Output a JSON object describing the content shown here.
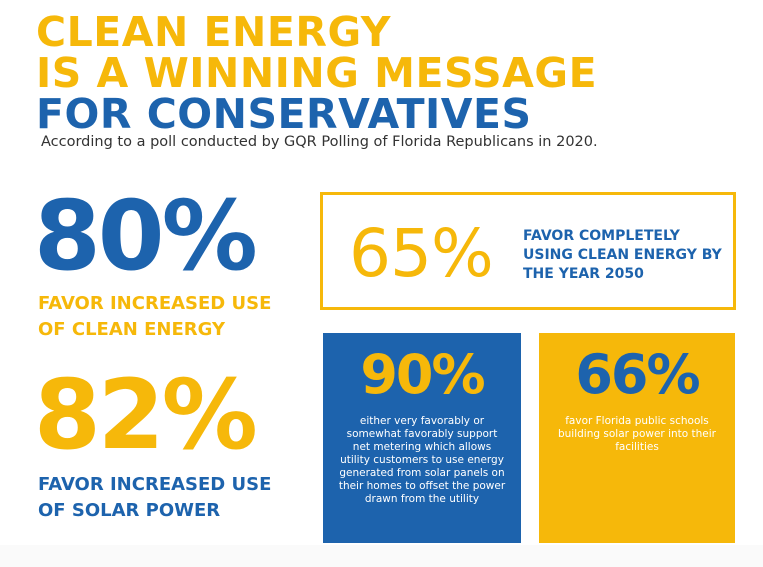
{
  "header": {
    "line1": "CLEAN ENERGY",
    "line2": "IS A WINNING MESSAGE",
    "line3": "FOR CONSERVATIVES",
    "subtitle": "According to a poll conducted by GQR Polling of Florida Republicans in 2020."
  },
  "stats": {
    "clean_energy": {
      "value": "80%",
      "label_line1": "FAVOR INCREASED USE",
      "label_line2": "OF CLEAN ENERGY"
    },
    "solar_power": {
      "value": "82%",
      "label_line1": "FAVOR INCREASED USE",
      "label_line2": "OF SOLAR POWER"
    },
    "by_2050": {
      "value": "65%",
      "label": "FAVOR COMPLETELY USING CLEAN ENERGY BY THE YEAR 2050"
    },
    "net_metering": {
      "value": "90%",
      "text": "either very favorably or somewhat favorably support net metering which allows utility customers to use energy generated from solar panels on their homes to offset the power drawn from the utility"
    },
    "schools": {
      "value": "66%",
      "text": "favor Florida public schools building solar power into their facilities"
    }
  },
  "colors": {
    "yellow": "#f6b80a",
    "blue": "#1d63ad"
  }
}
